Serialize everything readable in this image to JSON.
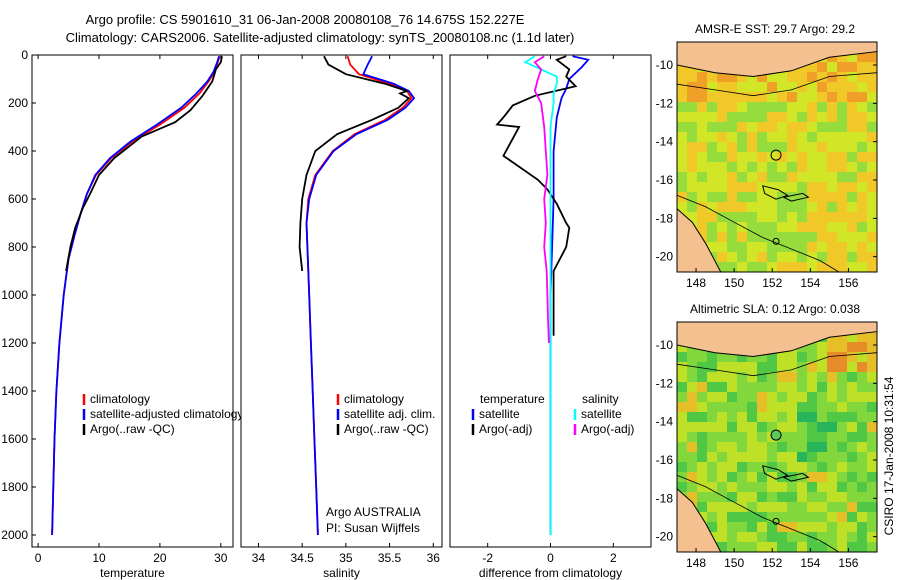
{
  "header": {
    "line1": "Argo profile: CS 5901610_31 06-Jan-2008 20080108_76 14.675S 152.227E",
    "line2": "Climatology: CARS2006. Satellite-adjusted climatology: synTS_20080108.nc (1.1d later)"
  },
  "side_label": "CSIRO 17-Jan-2008 10:31:54",
  "credit": {
    "line1": "Argo AUSTRALIA",
    "line2": "PI: Susan Wijffels"
  },
  "colors": {
    "climatology": "#ff0000",
    "satellite": "#0000ff",
    "argo": "#000000",
    "magenta": "#ff00ff",
    "cyan": "#00ffff",
    "land": "#f5c08f"
  },
  "chart_data": [
    {
      "type": "line",
      "xlabel": "temperature",
      "xlim": [
        -1,
        32
      ],
      "ylim": [
        0,
        2050
      ],
      "xticks": [
        0,
        10,
        20,
        30
      ],
      "yticks": [
        0,
        200,
        400,
        600,
        800,
        1000,
        1200,
        1400,
        1600,
        1800,
        2000
      ],
      "legend": [
        "climatology",
        "satellite-adjusted climatology",
        "Argo(..raw -QC)"
      ],
      "series": [
        {
          "name": "climatology",
          "color": "#ff0000",
          "points": [
            [
              29.8,
              5
            ],
            [
              29.5,
              30
            ],
            [
              29.0,
              70
            ],
            [
              28.0,
              110
            ],
            [
              26.5,
              160
            ],
            [
              24.0,
              220
            ],
            [
              20.0,
              290
            ],
            [
              15.5,
              360
            ],
            [
              12.0,
              430
            ],
            [
              9.5,
              500
            ],
            [
              8.0,
              580
            ],
            [
              7.0,
              660
            ],
            [
              6.0,
              750
            ],
            [
              5.0,
              850
            ],
            [
              4.2,
              1000
            ],
            [
              3.5,
              1200
            ],
            [
              3.0,
              1400
            ],
            [
              2.7,
              1600
            ],
            [
              2.5,
              1800
            ],
            [
              2.3,
              2000
            ]
          ]
        },
        {
          "name": "satellite-adjusted climatology",
          "color": "#0000ff",
          "points": [
            [
              29.7,
              5
            ],
            [
              29.4,
              30
            ],
            [
              28.8,
              70
            ],
            [
              27.8,
              110
            ],
            [
              26.0,
              160
            ],
            [
              23.5,
              220
            ],
            [
              19.5,
              290
            ],
            [
              15.2,
              360
            ],
            [
              11.8,
              430
            ],
            [
              9.4,
              500
            ],
            [
              8.0,
              580
            ],
            [
              7.0,
              660
            ],
            [
              6.0,
              750
            ],
            [
              5.0,
              850
            ],
            [
              4.2,
              1000
            ],
            [
              3.5,
              1200
            ],
            [
              3.0,
              1400
            ],
            [
              2.7,
              1600
            ],
            [
              2.5,
              1800
            ],
            [
              2.3,
              2000
            ]
          ]
        },
        {
          "name": "Argo(..raw -QC)",
          "color": "#000000",
          "points": [
            [
              30.2,
              5
            ],
            [
              30.0,
              30
            ],
            [
              29.2,
              60
            ],
            [
              28.6,
              110
            ],
            [
              27.0,
              170
            ],
            [
              25.0,
              230
            ],
            [
              22.5,
              280
            ],
            [
              17.0,
              340
            ],
            [
              12.5,
              430
            ],
            [
              10.0,
              500
            ],
            [
              8.5,
              580
            ],
            [
              7.3,
              640
            ],
            [
              6.1,
              720
            ],
            [
              5.3,
              800
            ],
            [
              4.6,
              900
            ]
          ]
        }
      ]
    },
    {
      "type": "line",
      "xlabel": "salinity",
      "xlim": [
        33.8,
        36.1
      ],
      "ylim": [
        0,
        2050
      ],
      "xticks": [
        34,
        34.5,
        35,
        35.5,
        36
      ],
      "legend": [
        "climatology",
        "satellite adj. clim.",
        "Argo(..raw -QC)"
      ],
      "series": [
        {
          "name": "climatology",
          "color": "#ff0000",
          "points": [
            [
              35.02,
              5
            ],
            [
              35.05,
              40
            ],
            [
              35.15,
              80
            ],
            [
              35.5,
              120
            ],
            [
              35.7,
              150
            ],
            [
              35.75,
              180
            ],
            [
              35.65,
              220
            ],
            [
              35.45,
              270
            ],
            [
              35.1,
              330
            ],
            [
              34.85,
              400
            ],
            [
              34.65,
              500
            ],
            [
              34.57,
              600
            ],
            [
              34.55,
              700
            ],
            [
              34.56,
              800
            ],
            [
              34.58,
              1000
            ],
            [
              34.6,
              1200
            ],
            [
              34.62,
              1400
            ],
            [
              34.64,
              1600
            ],
            [
              34.66,
              1800
            ],
            [
              34.68,
              2000
            ]
          ]
        },
        {
          "name": "satellite adj. clim.",
          "color": "#0000ff",
          "points": [
            [
              35.3,
              5
            ],
            [
              35.25,
              40
            ],
            [
              35.2,
              80
            ],
            [
              35.55,
              120
            ],
            [
              35.72,
              150
            ],
            [
              35.78,
              180
            ],
            [
              35.68,
              220
            ],
            [
              35.48,
              270
            ],
            [
              35.12,
              330
            ],
            [
              34.86,
              400
            ],
            [
              34.66,
              500
            ],
            [
              34.58,
              600
            ],
            [
              34.55,
              700
            ],
            [
              34.56,
              800
            ],
            [
              34.58,
              1000
            ],
            [
              34.6,
              1200
            ],
            [
              34.62,
              1400
            ],
            [
              34.64,
              1600
            ],
            [
              34.66,
              1800
            ],
            [
              34.68,
              2000
            ]
          ]
        },
        {
          "name": "Argo(..raw -QC)",
          "color": "#000000",
          "points": [
            [
              34.75,
              5
            ],
            [
              34.8,
              40
            ],
            [
              35.0,
              80
            ],
            [
              35.45,
              120
            ],
            [
              35.7,
              150
            ],
            [
              35.62,
              160
            ],
            [
              35.72,
              180
            ],
            [
              35.6,
              220
            ],
            [
              35.3,
              270
            ],
            [
              34.9,
              330
            ],
            [
              34.65,
              400
            ],
            [
              34.55,
              500
            ],
            [
              34.5,
              600
            ],
            [
              34.48,
              700
            ],
            [
              34.47,
              800
            ],
            [
              34.5,
              900
            ]
          ]
        }
      ]
    },
    {
      "type": "line",
      "xlabel": "difference from climatology",
      "xlim": [
        -3.2,
        3.2
      ],
      "ylim": [
        0,
        2050
      ],
      "xticks": [
        -2,
        0,
        2
      ],
      "legend": [
        "temperature",
        "satellite",
        "Argo(-adj)",
        "salinity",
        "satellite",
        "Argo(-adj)"
      ],
      "series": [
        {
          "name": "temperature satellite",
          "color": "#0000ff",
          "points": [
            [
              0.7,
              5
            ],
            [
              1.2,
              20
            ],
            [
              1.0,
              50
            ],
            [
              0.6,
              100
            ],
            [
              0.5,
              140
            ],
            [
              0.35,
              180
            ],
            [
              0.2,
              260
            ],
            [
              0.1,
              400
            ],
            [
              0.1,
              600
            ],
            [
              0.05,
              800
            ],
            [
              0.0,
              1000
            ],
            [
              0.0,
              1200
            ],
            [
              0.0,
              1400
            ],
            [
              0.0,
              1600
            ],
            [
              0.0,
              1800
            ],
            [
              0.0,
              2000
            ]
          ]
        },
        {
          "name": "temperature Argo(-adj)",
          "color": "#000000",
          "points": [
            [
              0.5,
              5
            ],
            [
              0.2,
              20
            ],
            [
              0.6,
              60
            ],
            [
              0.5,
              90
            ],
            [
              0.8,
              130
            ],
            [
              -0.5,
              170
            ],
            [
              -1.2,
              210
            ],
            [
              -1.5,
              260
            ],
            [
              -1.7,
              290
            ],
            [
              -1.0,
              300
            ],
            [
              -1.5,
              420
            ],
            [
              -0.4,
              520
            ],
            [
              -0.1,
              560
            ],
            [
              0.2,
              620
            ],
            [
              0.5,
              700
            ],
            [
              0.6,
              720
            ],
            [
              0.5,
              800
            ],
            [
              0.3,
              850
            ],
            [
              0.1,
              900
            ],
            [
              0.1,
              1000
            ],
            [
              0.1,
              1100
            ],
            [
              0.1,
              1170
            ]
          ]
        },
        {
          "name": "salinity satellite",
          "color": "#00ffff",
          "points": [
            [
              -0.5,
              5
            ],
            [
              -0.8,
              30
            ],
            [
              -0.3,
              60
            ],
            [
              0.2,
              90
            ],
            [
              0.2,
              120
            ],
            [
              0.1,
              160
            ],
            [
              0.1,
              200
            ],
            [
              0.0,
              300
            ],
            [
              0.0,
              500
            ],
            [
              0.0,
              800
            ],
            [
              0.0,
              1000
            ],
            [
              0.0,
              1200
            ],
            [
              0.0,
              1500
            ],
            [
              0.0,
              1800
            ],
            [
              0.0,
              2000
            ]
          ]
        },
        {
          "name": "salinity Argo(-adj)",
          "color": "#ff00ff",
          "points": [
            [
              -0.2,
              5
            ],
            [
              -0.5,
              30
            ],
            [
              -0.3,
              60
            ],
            [
              -0.4,
              100
            ],
            [
              -0.5,
              150
            ],
            [
              -0.3,
              200
            ],
            [
              -0.2,
              300
            ],
            [
              -0.15,
              400
            ],
            [
              -0.1,
              500
            ],
            [
              -0.2,
              600
            ],
            [
              -0.15,
              700
            ],
            [
              -0.2,
              800
            ],
            [
              -0.12,
              900
            ],
            [
              -0.1,
              1000
            ],
            [
              -0.08,
              1100
            ],
            [
              -0.05,
              1200
            ]
          ]
        }
      ]
    },
    {
      "type": "heatmap",
      "title": "AMSR-E SST: 29.7 Argo: 29.2",
      "xlim": [
        147,
        157.5
      ],
      "ylim": [
        -20.8,
        -8.8
      ],
      "xticks": [
        148,
        150,
        152,
        154,
        156
      ],
      "yticks": [
        -10,
        -12,
        -14,
        -16,
        -18,
        -20
      ],
      "marker": [
        152.2,
        -14.7
      ]
    },
    {
      "type": "heatmap",
      "title": "Altimetric SLA: 0.12 Argo: 0.038",
      "xlim": [
        147,
        157.5
      ],
      "ylim": [
        -20.8,
        -8.8
      ],
      "xticks": [
        148,
        150,
        152,
        154,
        156
      ],
      "yticks": [
        -10,
        -12,
        -14,
        -16,
        -18,
        -20
      ],
      "marker": [
        152.2,
        -14.7
      ]
    }
  ]
}
